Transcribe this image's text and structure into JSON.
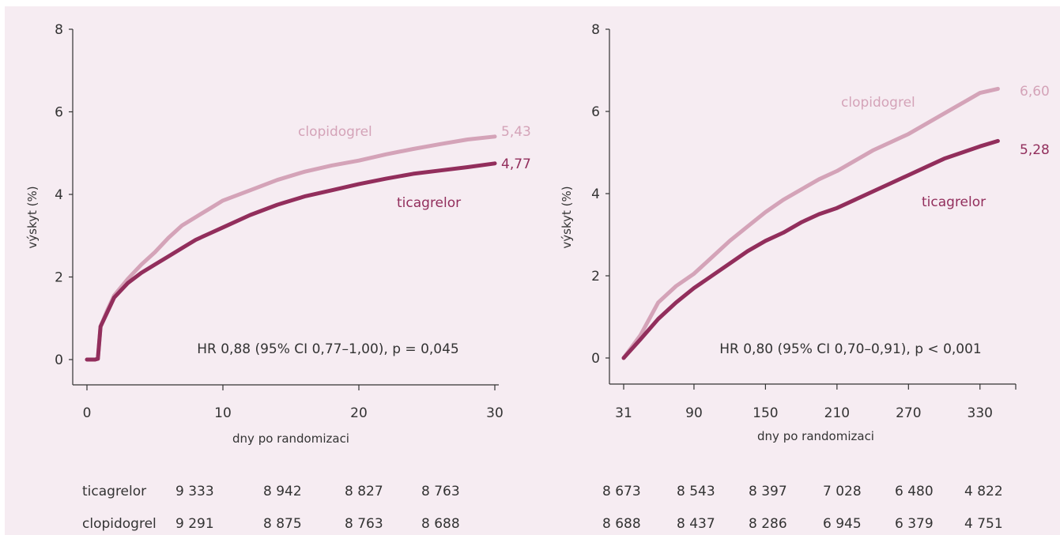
{
  "colors": {
    "clopidogrel": "#d4a3b8",
    "ticagrelor": "#922e5c",
    "text": "#333333",
    "axis": "#333333",
    "background": "#f6ecf2"
  },
  "chart_data": [
    {
      "type": "line",
      "xlabel": "dny po randomizaci",
      "ylabel": "výskyt (%)",
      "xlim": [
        0,
        30
      ],
      "ylim": [
        0,
        8
      ],
      "xticks": [
        0,
        10,
        20,
        30
      ],
      "yticks": [
        0,
        2,
        4,
        6,
        8
      ],
      "annotation": "HR 0,88 (95% CI 0,77–1,00), p = 0,045",
      "series": [
        {
          "name": "clopidogrel",
          "end_label": "5,43",
          "x": [
            0,
            0.6,
            0.8,
            1,
            1.5,
            2,
            3,
            4,
            5,
            6,
            7,
            8,
            9,
            10,
            12,
            14,
            16,
            18,
            20,
            22,
            24,
            26,
            28,
            30
          ],
          "y": [
            0,
            0,
            0.02,
            0.8,
            1.2,
            1.55,
            1.95,
            2.3,
            2.6,
            2.95,
            3.25,
            3.45,
            3.65,
            3.85,
            4.1,
            4.35,
            4.55,
            4.7,
            4.82,
            4.97,
            5.1,
            5.22,
            5.33,
            5.4
          ]
        },
        {
          "name": "ticagrelor",
          "end_label": "4,77",
          "x": [
            0,
            0.6,
            0.8,
            1,
            1.5,
            2,
            3,
            4,
            5,
            6,
            7,
            8,
            9,
            10,
            12,
            14,
            16,
            18,
            20,
            22,
            24,
            26,
            28,
            30
          ],
          "y": [
            0,
            0,
            0.02,
            0.8,
            1.15,
            1.5,
            1.85,
            2.1,
            2.3,
            2.5,
            2.7,
            2.9,
            3.05,
            3.2,
            3.5,
            3.75,
            3.95,
            4.1,
            4.25,
            4.38,
            4.5,
            4.58,
            4.66,
            4.75
          ]
        }
      ]
    },
    {
      "type": "line",
      "xlabel": "dny po randomizaci",
      "ylabel": "výskyt (%)",
      "xlim": [
        31,
        360
      ],
      "ylim": [
        0,
        8
      ],
      "xticks": [
        31,
        90,
        150,
        210,
        270,
        330
      ],
      "yticks": [
        0,
        2,
        4,
        6,
        8
      ],
      "annotation": "HR 0,80 (95% CI 0,70–0,91), p < 0,001",
      "series": [
        {
          "name": "clopidogrel",
          "end_label": "6,60",
          "x": [
            31,
            45,
            60,
            75,
            90,
            105,
            120,
            135,
            150,
            165,
            180,
            195,
            210,
            225,
            240,
            255,
            270,
            285,
            300,
            315,
            330,
            345
          ],
          "y": [
            0,
            0.55,
            1.35,
            1.75,
            2.05,
            2.45,
            2.85,
            3.2,
            3.55,
            3.85,
            4.1,
            4.35,
            4.55,
            4.8,
            5.05,
            5.25,
            5.45,
            5.7,
            5.95,
            6.2,
            6.45,
            6.55
          ]
        },
        {
          "name": "ticagrelor",
          "end_label": "5,28",
          "x": [
            31,
            45,
            60,
            75,
            90,
            105,
            120,
            135,
            150,
            165,
            180,
            195,
            210,
            225,
            240,
            255,
            270,
            285,
            300,
            315,
            330,
            345
          ],
          "y": [
            0,
            0.45,
            0.95,
            1.35,
            1.7,
            2.0,
            2.3,
            2.6,
            2.85,
            3.05,
            3.3,
            3.5,
            3.65,
            3.85,
            4.05,
            4.25,
            4.45,
            4.65,
            4.85,
            5.0,
            5.15,
            5.28
          ]
        }
      ]
    }
  ],
  "risk_table": {
    "rows": [
      {
        "label": "ticagrelor",
        "left": [
          "9 333",
          "8 942",
          "8 827",
          "8 763"
        ],
        "right": [
          "8 673",
          "8 543",
          "8 397",
          "7 028",
          "6 480",
          "4 822"
        ]
      },
      {
        "label": "clopidogrel",
        "left": [
          "9 291",
          "8 875",
          "8 763",
          "8 688"
        ],
        "right": [
          "8 688",
          "8 437",
          "8 286",
          "6 945",
          "6 379",
          "4 751"
        ]
      }
    ]
  }
}
